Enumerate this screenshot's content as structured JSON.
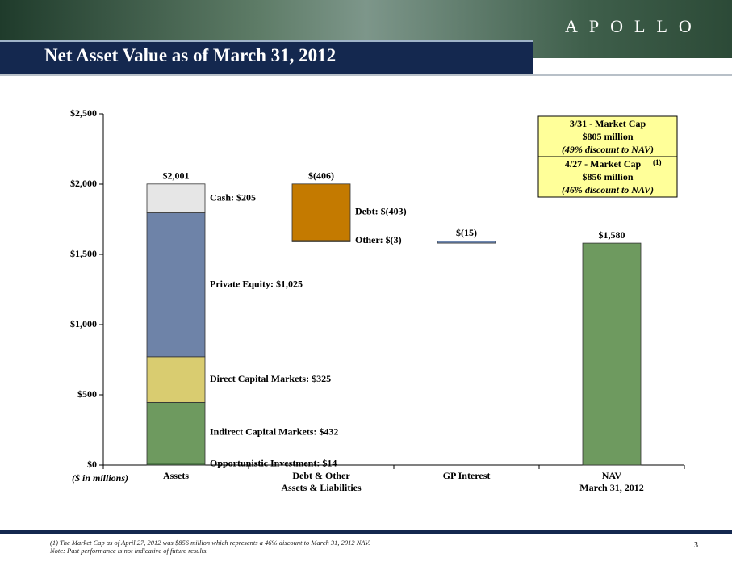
{
  "header": {
    "logo": "APOLLO",
    "title": "Net Asset Value as of March 31, 2012"
  },
  "chart_data": {
    "type": "waterfall",
    "unit_label": "($ in millions)",
    "ylim": [
      0,
      2500
    ],
    "yticks": [
      {
        "value": 0,
        "label": "$0"
      },
      {
        "value": 500,
        "label": "$500"
      },
      {
        "value": 1000,
        "label": "$1,000"
      },
      {
        "value": 1500,
        "label": "$1,500"
      },
      {
        "value": 2000,
        "label": "$2,000"
      },
      {
        "value": 2500,
        "label": "$2,500"
      }
    ],
    "columns": [
      {
        "category": [
          "Assets"
        ],
        "kind": "stack",
        "total": 2001,
        "total_label": "$2,001",
        "segments": [
          {
            "value": 14,
            "color": "#4d7a45",
            "label": "Opportunistic Investment: $14"
          },
          {
            "value": 432,
            "color": "#6e9a5f",
            "label": "Indirect Capital Markets: $432"
          },
          {
            "value": 325,
            "color": "#d9cc70",
            "label": "Direct Capital Markets: $325"
          },
          {
            "value": 1025,
            "color": "#6e83a8",
            "label": "Private Equity: $1,025"
          },
          {
            "value": 205,
            "color": "#e6e6e6",
            "label": "Cash: $205"
          }
        ]
      },
      {
        "category": [
          "Debt & Other",
          "Assets & Liabilities"
        ],
        "kind": "delta",
        "total": -406,
        "total_label": "$(406)",
        "segments": [
          {
            "value": -403,
            "color": "#c47a00",
            "label": "Debt: $(403)"
          },
          {
            "value": -3,
            "color": "#c47a00",
            "label": "Other: $(3)"
          }
        ]
      },
      {
        "category": [
          "GP Interest"
        ],
        "kind": "delta",
        "total": -15,
        "total_label": "$(15)",
        "segments": [
          {
            "value": -15,
            "color": "#6e87b0"
          }
        ]
      },
      {
        "category": [
          "NAV",
          "March 31, 2012"
        ],
        "kind": "total",
        "total": 1580,
        "total_label": "$1,580",
        "segments": [
          {
            "value": 1580,
            "color": "#6e9a5f"
          }
        ]
      }
    ],
    "callouts": [
      {
        "lines": [
          "3/31 - Market Cap",
          "$805 million",
          "(49% discount to NAV)"
        ]
      },
      {
        "lines": [
          "4/27 - Market Cap",
          "$856 million",
          "(46% discount to NAV)"
        ],
        "note_ref": "(1)"
      }
    ]
  },
  "footnotes": [
    "(1) The Market Cap as of April 27, 2012 was $856 million which represents a 46% discount to March 31, 2012 NAV.",
    "Note:     Past performance is not indicative of future results."
  ],
  "page_number": "3"
}
